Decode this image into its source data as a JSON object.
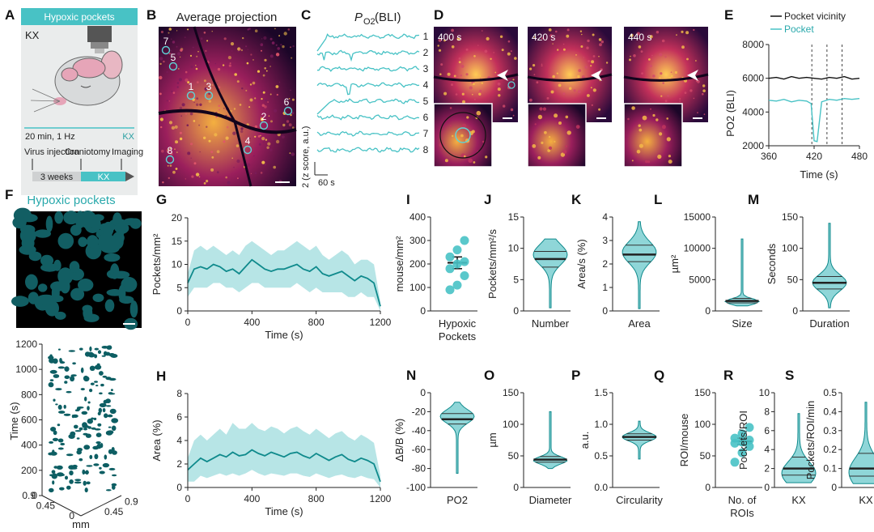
{
  "panel_letters": [
    "A",
    "B",
    "C",
    "D",
    "E",
    "F",
    "G",
    "H",
    "I",
    "J",
    "K",
    "L",
    "M",
    "N",
    "O",
    "P",
    "Q",
    "R",
    "S"
  ],
  "colors": {
    "teal": "#48c2c5",
    "dark_teal": "#0f8a8c",
    "deep_teal": "#0d5e63",
    "black": "#111111"
  },
  "panelA": {
    "header": "Hypoxic pockets",
    "anesthesia": "KX",
    "rate": "20 min, 1 Hz",
    "rate_tag": "KX",
    "timeline_labels": [
      "Virus injection",
      "Craniotomy",
      "Imaging"
    ],
    "interval": "3 weeks",
    "kx": "KX"
  },
  "panelB": {
    "title": "Average projection",
    "roi_labels": [
      "7",
      "5",
      "1",
      "3",
      "6",
      "2",
      "8",
      "4"
    ]
  },
  "panelC": {
    "title_prefix": "P",
    "title_sub": "O2",
    "title_suffix": " (BLI)",
    "trace_labels": [
      "1",
      "2",
      "3",
      "4",
      "5",
      "6",
      "7",
      "8"
    ],
    "scale_v": "2 (z score, a.u.)",
    "scale_h": "60 s"
  },
  "panelD": {
    "times": [
      "400 s",
      "420 s",
      "440 s"
    ]
  },
  "panelE": {
    "legend": [
      "Pocket vicinity",
      "Pocket"
    ],
    "ylabel": "PO2 (BLI)",
    "xlabel": "Time (s)",
    "yticks": [
      "8000",
      "6000",
      "4000",
      "2000"
    ],
    "xticks": [
      "360",
      "420",
      "480"
    ]
  },
  "panelF": {
    "title": "Hypoxic pockets",
    "zlabel": "Time (s)",
    "zticks": [
      "1200",
      "1000",
      "800",
      "600",
      "400",
      "200",
      "0"
    ],
    "x_ticks": [
      "0.9",
      "0.45",
      "0"
    ],
    "y_ticks": [
      "0.45",
      "0.9"
    ],
    "base_label": "mm"
  },
  "chart_data": [
    {
      "panel": "E",
      "type": "line",
      "title": "",
      "xlabel": "Time (s)",
      "ylabel": "PO2 (BLI)",
      "xlim": [
        360,
        480
      ],
      "ylim": [
        2000,
        8000
      ],
      "series": [
        {
          "name": "Pocket vicinity",
          "x": [
            360,
            370,
            380,
            390,
            400,
            410,
            420,
            430,
            440,
            450,
            460,
            470,
            480
          ],
          "values": [
            6000,
            6050,
            5950,
            6100,
            6000,
            6050,
            6000,
            5950,
            6050,
            6000,
            6100,
            5950,
            6000
          ]
        },
        {
          "name": "Pocket",
          "x": [
            360,
            370,
            380,
            390,
            400,
            410,
            416,
            420,
            424,
            430,
            440,
            450,
            460,
            470,
            480
          ],
          "values": [
            4700,
            4650,
            4750,
            4600,
            4700,
            4650,
            4500,
            2300,
            2250,
            4600,
            4750,
            4700,
            4800,
            4750,
            4800
          ]
        }
      ],
      "vlines": [
        417,
        437,
        457
      ]
    },
    {
      "panel": "G",
      "type": "area",
      "xlabel": "Time (s)",
      "ylabel": "Pockets/mm²",
      "xlim": [
        0,
        1200
      ],
      "ylim": [
        0,
        20
      ],
      "yticks": [
        0,
        5,
        10,
        15,
        20
      ],
      "xticks": [
        0,
        400,
        800,
        1200
      ],
      "x": [
        0,
        40,
        80,
        120,
        160,
        200,
        240,
        280,
        320,
        360,
        400,
        440,
        480,
        520,
        560,
        600,
        640,
        680,
        720,
        760,
        800,
        840,
        880,
        920,
        960,
        1000,
        1040,
        1080,
        1120,
        1160,
        1200
      ],
      "mean": [
        6,
        9,
        9.5,
        9,
        10,
        9.5,
        8.5,
        9,
        8,
        9.5,
        11,
        10,
        9,
        8.5,
        9,
        9,
        9.5,
        10,
        9,
        8.5,
        9.5,
        8,
        7.5,
        8,
        8.5,
        7.5,
        6.5,
        7.5,
        7,
        6,
        1
      ],
      "upper": [
        8,
        13,
        14,
        13,
        14,
        13,
        12,
        13,
        12,
        14,
        15,
        14,
        13,
        12,
        13,
        13,
        14,
        15,
        14,
        13,
        14,
        12,
        11,
        12,
        13,
        12,
        10,
        11,
        11,
        10,
        2
      ],
      "lower": [
        3,
        5,
        5,
        5,
        6,
        6,
        5,
        5,
        4,
        5,
        6,
        6,
        5,
        5,
        5,
        5,
        5,
        6,
        5,
        4,
        5,
        4,
        4,
        4,
        4,
        3,
        3,
        4,
        3,
        3,
        0
      ]
    },
    {
      "panel": "H",
      "type": "area",
      "xlabel": "Time (s)",
      "ylabel": "Area (%)",
      "xlim": [
        0,
        1200
      ],
      "ylim": [
        0,
        8
      ],
      "yticks": [
        0,
        2,
        4,
        6,
        8
      ],
      "xticks": [
        0,
        400,
        800,
        1200
      ],
      "x": [
        0,
        40,
        80,
        120,
        160,
        200,
        240,
        280,
        320,
        360,
        400,
        440,
        480,
        520,
        560,
        600,
        640,
        680,
        720,
        760,
        800,
        840,
        880,
        920,
        960,
        1000,
        1040,
        1080,
        1120,
        1160,
        1200
      ],
      "mean": [
        1.5,
        2,
        2.5,
        2.2,
        2.5,
        2.8,
        2.6,
        3,
        2.7,
        2.8,
        3.2,
        2.9,
        2.7,
        3,
        2.8,
        2.6,
        2.9,
        3,
        2.7,
        2.5,
        2.9,
        2.6,
        2.3,
        2.6,
        2.8,
        2.4,
        2.2,
        2.5,
        2.3,
        2,
        0.5
      ],
      "upper": [
        2.5,
        4,
        4.5,
        4,
        4.5,
        5,
        4.5,
        5.5,
        5,
        5,
        5.5,
        5,
        4.8,
        5.2,
        5,
        4.6,
        5,
        5.2,
        4.8,
        4.5,
        5,
        4.6,
        4.2,
        4.6,
        4.8,
        4.3,
        4,
        4.5,
        4.2,
        3.8,
        1
      ],
      "lower": [
        0.5,
        0.5,
        1,
        0.8,
        1,
        1.2,
        1,
        1.2,
        1,
        1.2,
        1.5,
        1.2,
        1,
        1.2,
        1.1,
        1,
        1.2,
        1.2,
        1,
        0.9,
        1.2,
        1,
        0.8,
        1,
        1.1,
        0.9,
        0.8,
        1,
        0.8,
        0.7,
        0
      ]
    },
    {
      "panel": "I",
      "type": "scatter",
      "ylabel": "mouse/mm²",
      "categories": [
        "Hypoxic Pockets"
      ],
      "ylim": [
        0,
        400
      ],
      "yticks": [
        0,
        100,
        200,
        300,
        400
      ],
      "values": [
        90,
        110,
        150,
        180,
        200,
        210,
        230,
        260,
        300
      ],
      "mean": 205,
      "sem": 25
    },
    {
      "panel": "J",
      "type": "violin",
      "ylabel": "Pockets/mm²/s",
      "categories": [
        "Number"
      ],
      "ylim": [
        0,
        15
      ],
      "yticks": [
        0,
        5,
        10,
        15
      ],
      "min": 0.5,
      "max": 11.5,
      "median": 8.3,
      "q1": 7,
      "q3": 9.5,
      "mode": 9
    },
    {
      "panel": "K",
      "type": "violin",
      "ylabel": "Area/s (%)",
      "categories": [
        "Area"
      ],
      "ylim": [
        0,
        4
      ],
      "yticks": [
        0,
        1,
        2,
        3,
        4
      ],
      "min": 0.1,
      "max": 3.8,
      "median": 2.4,
      "q1": 2.1,
      "q3": 2.8,
      "mode": 2.5
    },
    {
      "panel": "L",
      "type": "violin",
      "ylabel": "µm²",
      "categories": [
        "Size"
      ],
      "ylim": [
        0,
        15000
      ],
      "yticks": [
        0,
        5000,
        10000,
        15000
      ],
      "min": 800,
      "max": 11500,
      "median": 1600,
      "q1": 1300,
      "q3": 2000,
      "mode": 1500
    },
    {
      "panel": "M",
      "type": "violin",
      "ylabel": "Seconds",
      "categories": [
        "Duration"
      ],
      "ylim": [
        0,
        150
      ],
      "yticks": [
        0,
        50,
        100,
        150
      ],
      "min": 5,
      "max": 140,
      "median": 45,
      "q1": 35,
      "q3": 55,
      "mode": 45
    },
    {
      "panel": "N",
      "type": "violin",
      "ylabel": "ΔB/B (%)",
      "categories": [
        "PO2"
      ],
      "ylim": [
        -100,
        0
      ],
      "yticks": [
        0,
        -20,
        -40,
        -60,
        -80,
        -100
      ],
      "min": -85,
      "max": -10,
      "median": -28,
      "q1": -33,
      "q3": -22,
      "mode": -25
    },
    {
      "panel": "O",
      "type": "violin",
      "ylabel": "µm",
      "categories": [
        "Diameter"
      ],
      "ylim": [
        0,
        150
      ],
      "yticks": [
        0,
        50,
        100,
        150
      ],
      "min": 30,
      "max": 120,
      "median": 44,
      "q1": 40,
      "q3": 49,
      "mode": 43
    },
    {
      "panel": "P",
      "type": "violin",
      "ylabel": "a.u.",
      "categories": [
        "Circularity"
      ],
      "ylim": [
        0,
        1.5
      ],
      "yticks": [
        0,
        0.5,
        1.0,
        1.5
      ],
      "min": 0.45,
      "max": 1.05,
      "median": 0.8,
      "q1": 0.75,
      "q3": 0.85,
      "mode": 0.8
    },
    {
      "panel": "Q",
      "type": "scatter",
      "ylabel": "ROI/mouse",
      "categories": [
        "No. of ROIs"
      ],
      "ylim": [
        0,
        150
      ],
      "yticks": [
        0,
        50,
        100,
        150
      ],
      "values": [
        40,
        55,
        65,
        70,
        72,
        75,
        78,
        85,
        95
      ],
      "mean": 73,
      "sem": 5
    },
    {
      "panel": "R",
      "type": "violin",
      "ylabel": "Pockets/ROI",
      "categories": [
        "KX"
      ],
      "ylim": [
        0,
        10
      ],
      "yticks": [
        0,
        2,
        4,
        6,
        8,
        10
      ],
      "min": 0.5,
      "max": 7.8,
      "median": 2,
      "q1": 1.3,
      "q3": 3.2,
      "mode": 1.5
    },
    {
      "panel": "S",
      "type": "violin",
      "ylabel": "Pockets/ROI/min",
      "categories": [
        "KX"
      ],
      "ylim": [
        0,
        0.5
      ],
      "yticks": [
        0,
        0.1,
        0.2,
        0.3,
        0.4,
        0.5
      ],
      "min": 0.02,
      "max": 0.45,
      "median": 0.1,
      "q1": 0.06,
      "q3": 0.18,
      "mode": 0.08
    }
  ]
}
